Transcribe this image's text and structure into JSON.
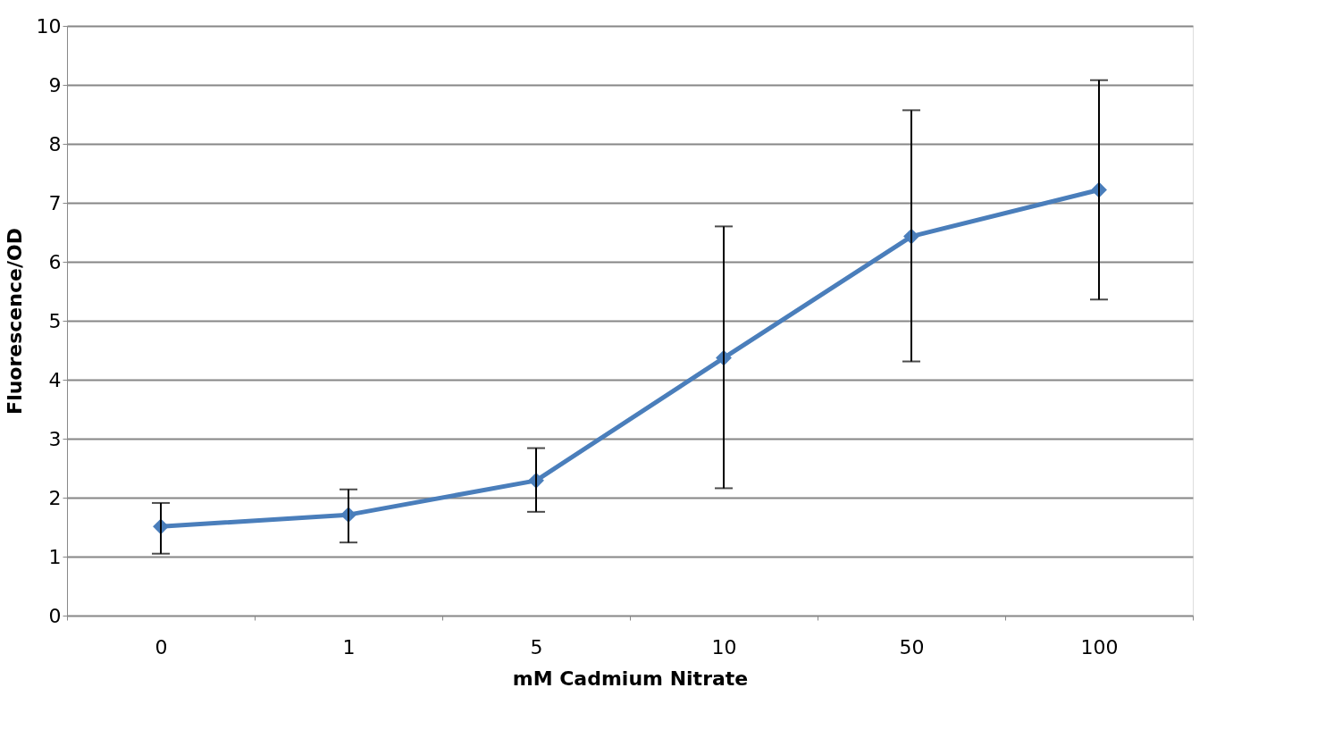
{
  "chart_data": {
    "type": "line",
    "xlabel": "mM Cadmium Nitrate",
    "ylabel": "Fluorescence/OD",
    "categories": [
      "0",
      "1",
      "5",
      "10",
      "50",
      "100"
    ],
    "series": [
      {
        "color": "#4a7ebb",
        "values": [
          1.51,
          1.71,
          2.29,
          4.37,
          6.43,
          7.22
        ],
        "errors": [
          [
            1.05,
            1.91
          ],
          [
            1.24,
            2.14
          ],
          [
            1.76,
            2.84
          ],
          [
            2.16,
            6.6
          ],
          [
            4.31,
            8.57
          ],
          [
            5.36,
            9.08
          ]
        ]
      }
    ],
    "ylim": [
      0,
      10
    ],
    "yticks": [
      0,
      1,
      2,
      3,
      4,
      5,
      6,
      7,
      8,
      9,
      10
    ],
    "grid": "y",
    "marker": "diamond",
    "line_style": "solid"
  }
}
